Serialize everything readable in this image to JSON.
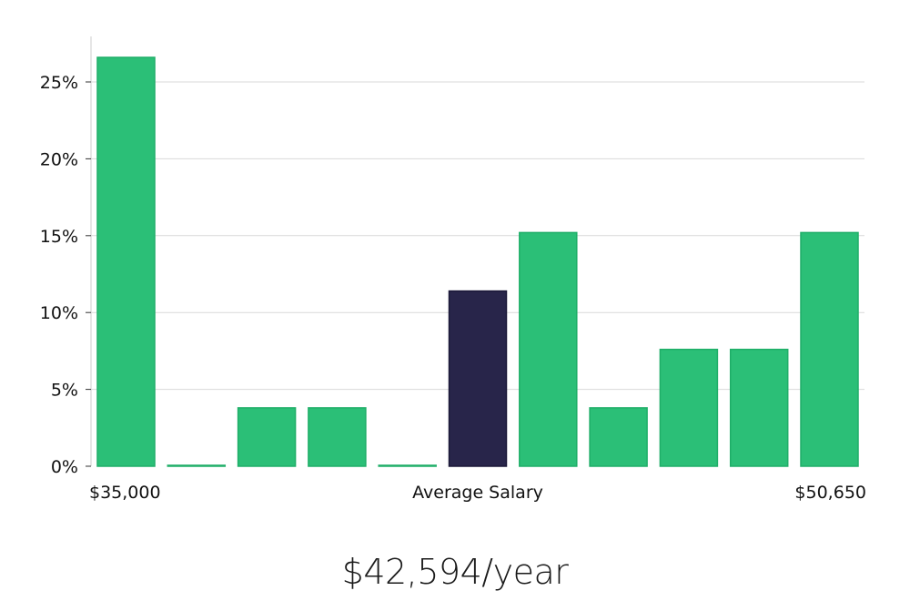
{
  "chart_data": {
    "type": "bar",
    "title": "",
    "xlabel": "Average Salary",
    "ylabel": "",
    "ylim": [
      0,
      28
    ],
    "yticks": [
      0,
      5,
      10,
      15,
      20,
      25
    ],
    "ytick_labels": [
      "0%",
      "5%",
      "10%",
      "15%",
      "20%",
      "25%"
    ],
    "x_min_label": "$35,000",
    "x_max_label": "$50,650",
    "values": [
      26.6,
      0.05,
      3.8,
      3.8,
      0.05,
      11.4,
      15.2,
      3.8,
      7.6,
      7.6,
      15.2
    ],
    "highlight_index": 5,
    "colors": {
      "bar": "#2bbf77",
      "bar_edge": "#1fae68",
      "highlight": "#28254a",
      "grid": "#d9d9d9",
      "axis": "#cccccc"
    }
  },
  "summary": {
    "average_salary": "$42,594/year"
  }
}
